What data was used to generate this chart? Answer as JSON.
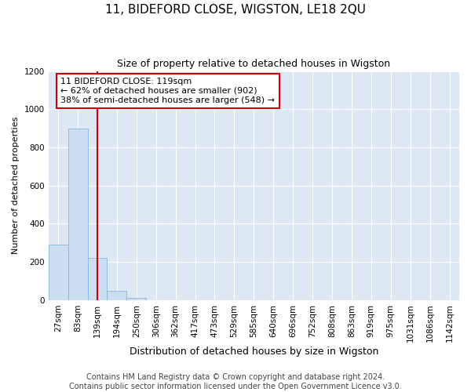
{
  "title": "11, BIDEFORD CLOSE, WIGSTON, LE18 2QU",
  "subtitle": "Size of property relative to detached houses in Wigston",
  "xlabel": "Distribution of detached houses by size in Wigston",
  "ylabel": "Number of detached properties",
  "bar_color": "#ccddf0",
  "bar_edge_color": "#7aafd4",
  "background_color": "#dde8f5",
  "grid_color": "#ffffff",
  "fig_background": "#ffffff",
  "bin_labels": [
    "27sqm",
    "83sqm",
    "139sqm",
    "194sqm",
    "250sqm",
    "306sqm",
    "362sqm",
    "417sqm",
    "473sqm",
    "529sqm",
    "585sqm",
    "640sqm",
    "696sqm",
    "752sqm",
    "808sqm",
    "863sqm",
    "919sqm",
    "975sqm",
    "1031sqm",
    "1086sqm",
    "1142sqm"
  ],
  "bar_heights": [
    290,
    900,
    220,
    50,
    10,
    0,
    0,
    0,
    0,
    0,
    0,
    0,
    0,
    0,
    0,
    0,
    0,
    0,
    0,
    0,
    0
  ],
  "ylim": [
    0,
    1200
  ],
  "yticks": [
    0,
    200,
    400,
    600,
    800,
    1000,
    1200
  ],
  "property_line_x": 2.0,
  "annotation_text": "11 BIDEFORD CLOSE: 119sqm\n← 62% of detached houses are smaller (902)\n38% of semi-detached houses are larger (548) →",
  "annotation_box_color": "#ffffff",
  "annotation_box_edge": "#cc0000",
  "line_color": "#cc0000",
  "footer_line1": "Contains HM Land Registry data © Crown copyright and database right 2024.",
  "footer_line2": "Contains public sector information licensed under the Open Government Licence v3.0.",
  "title_fontsize": 11,
  "subtitle_fontsize": 9,
  "ylabel_fontsize": 8,
  "xlabel_fontsize": 9,
  "tick_fontsize": 7.5,
  "footer_fontsize": 7,
  "annotation_fontsize": 8
}
